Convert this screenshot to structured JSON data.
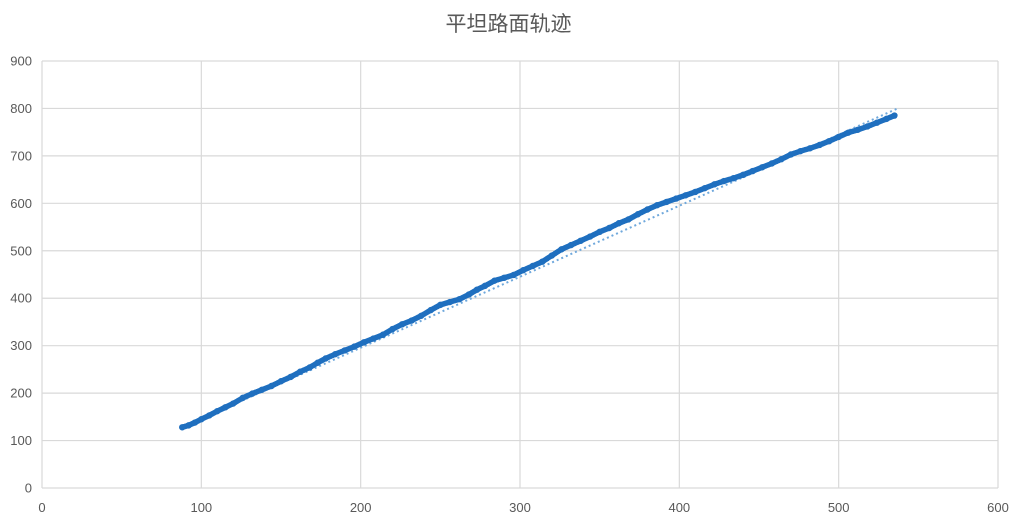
{
  "chart_data": {
    "type": "scatter",
    "title": "平坦路面轨迹",
    "xlabel": "",
    "ylabel": "",
    "xlim": [
      0,
      600
    ],
    "ylim": [
      0,
      900
    ],
    "x_ticks": [
      0,
      100,
      200,
      300,
      400,
      500,
      600
    ],
    "y_ticks": [
      0,
      100,
      200,
      300,
      400,
      500,
      600,
      700,
      800,
      900
    ],
    "grid": true,
    "legend": "none",
    "marker_color": "#1f6fbf",
    "trendline": {
      "style": "dotted",
      "color": "#6fa8dc",
      "x_start": 88,
      "y_start": 128,
      "x_end": 537,
      "y_end": 800
    },
    "series": [
      {
        "x": [
          88,
          92,
          96,
          100,
          105,
          110,
          115,
          120,
          126,
          132,
          138,
          144,
          150,
          156,
          162,
          168,
          173,
          178,
          184,
          190,
          196,
          202,
          208,
          214,
          220,
          226,
          232,
          238,
          244,
          250,
          256,
          262,
          268,
          273,
          278,
          284,
          290,
          296,
          302,
          308,
          314,
          320,
          326,
          332,
          338,
          344,
          350,
          356,
          362,
          368,
          374,
          380,
          386,
          392,
          398,
          404,
          410,
          416,
          422,
          428,
          434,
          440,
          446,
          452,
          458,
          464,
          470,
          476,
          482,
          488,
          494,
          500,
          506,
          512,
          518,
          524,
          530,
          535
        ],
        "y": [
          128,
          132,
          138,
          145,
          153,
          162,
          170,
          178,
          190,
          199,
          207,
          215,
          225,
          234,
          245,
          254,
          264,
          273,
          282,
          290,
          298,
          307,
          315,
          323,
          335,
          345,
          353,
          363,
          375,
          386,
          392,
          398,
          408,
          418,
          426,
          437,
          443,
          449,
          459,
          468,
          477,
          490,
          503,
          512,
          521,
          530,
          540,
          548,
          558,
          566,
          577,
          587,
          596,
          603,
          610,
          617,
          624,
          632,
          640,
          647,
          653,
          660,
          668,
          676,
          684,
          693,
          703,
          710,
          716,
          723,
          731,
          740,
          749,
          755,
          762,
          770,
          778,
          785
        ]
      }
    ]
  }
}
